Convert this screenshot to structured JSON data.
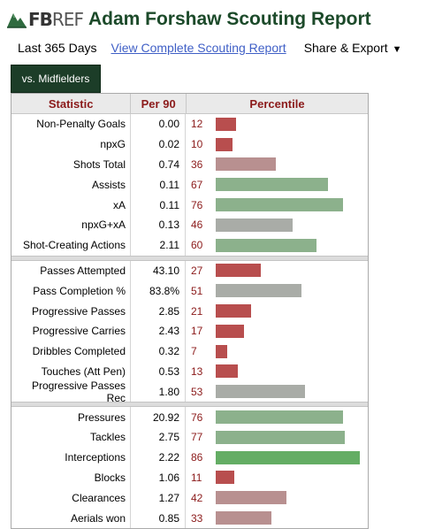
{
  "header": {
    "logo_fb": "FB",
    "logo_ref": "REF",
    "title": "Adam Forshaw Scouting Report"
  },
  "subnav": {
    "period": "Last 365 Days",
    "complete_link": "View Complete Scouting Report",
    "share_label": "Share & Export"
  },
  "tab": {
    "label": "vs. Midfielders"
  },
  "table": {
    "headers": {
      "statistic": "Statistic",
      "per90": "Per 90",
      "percentile": "Percentile"
    },
    "sections": [
      {
        "rows": [
          {
            "stat": "Non-Penalty Goals",
            "per90": "0.00",
            "percentile": 12
          },
          {
            "stat": "npxG",
            "per90": "0.02",
            "percentile": 10
          },
          {
            "stat": "Shots Total",
            "per90": "0.74",
            "percentile": 36
          },
          {
            "stat": "Assists",
            "per90": "0.11",
            "percentile": 67
          },
          {
            "stat": "xA",
            "per90": "0.11",
            "percentile": 76
          },
          {
            "stat": "npxG+xA",
            "per90": "0.13",
            "percentile": 46
          },
          {
            "stat": "Shot-Creating Actions",
            "per90": "2.11",
            "percentile": 60
          }
        ]
      },
      {
        "rows": [
          {
            "stat": "Passes Attempted",
            "per90": "43.10",
            "percentile": 27
          },
          {
            "stat": "Pass Completion %",
            "per90": "83.8%",
            "percentile": 51
          },
          {
            "stat": "Progressive Passes",
            "per90": "2.85",
            "percentile": 21
          },
          {
            "stat": "Progressive Carries",
            "per90": "2.43",
            "percentile": 17
          },
          {
            "stat": "Dribbles Completed",
            "per90": "0.32",
            "percentile": 7
          },
          {
            "stat": "Touches (Att Pen)",
            "per90": "0.53",
            "percentile": 13
          },
          {
            "stat": "Progressive Passes Rec",
            "per90": "1.80",
            "percentile": 53
          }
        ]
      },
      {
        "rows": [
          {
            "stat": "Pressures",
            "per90": "20.92",
            "percentile": 76
          },
          {
            "stat": "Tackles",
            "per90": "2.75",
            "percentile": 77
          },
          {
            "stat": "Interceptions",
            "per90": "2.22",
            "percentile": 86
          },
          {
            "stat": "Blocks",
            "per90": "1.06",
            "percentile": 11
          },
          {
            "stat": "Clearances",
            "per90": "1.27",
            "percentile": 42
          },
          {
            "stat": "Aerials won",
            "per90": "0.85",
            "percentile": 33
          }
        ]
      }
    ]
  },
  "colors": {
    "title_green": "#1c4a2a",
    "tab_bg": "#1c3d28",
    "header_red": "#8b1a1a",
    "link_blue": "#3f5fc6",
    "bar_very_low": "#b84e4e",
    "bar_low": "#b89090",
    "bar_mid": "#a9aca7",
    "bar_high": "#8cb18c",
    "bar_very_high": "#64ad64"
  }
}
